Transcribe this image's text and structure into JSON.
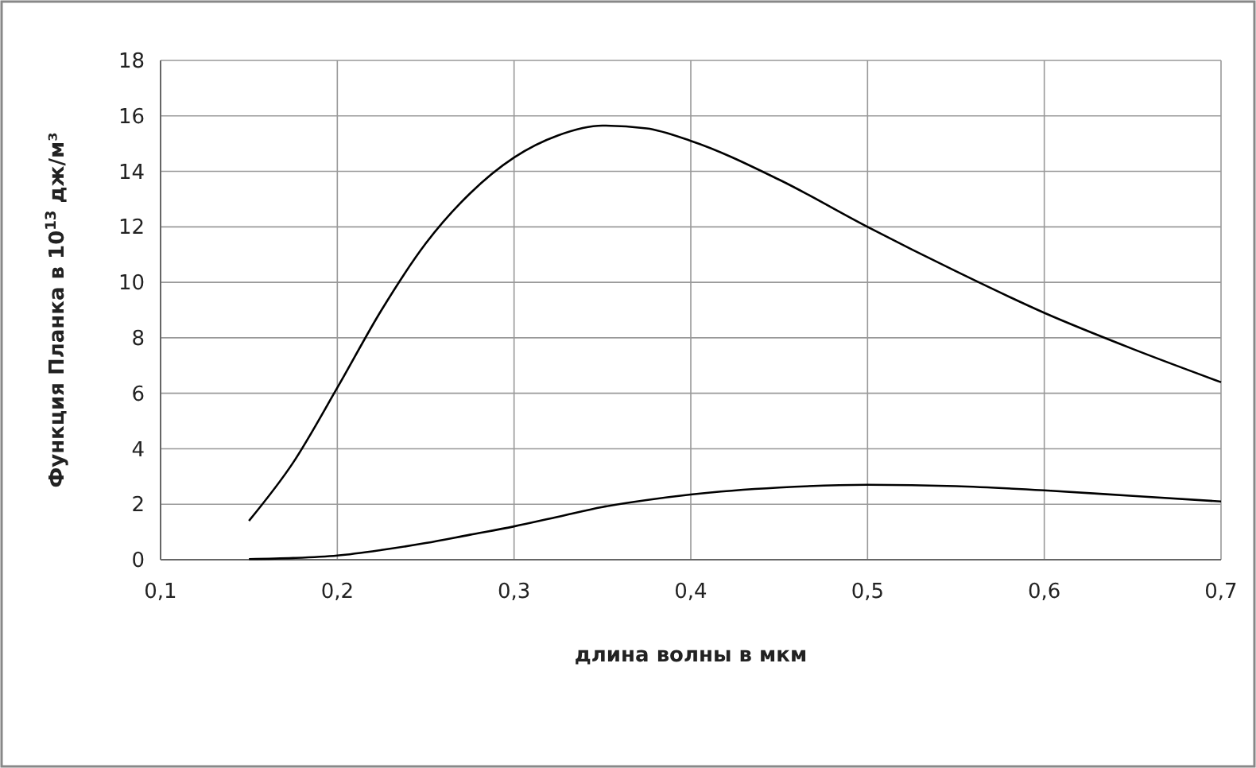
{
  "chart_data": {
    "type": "line",
    "xlabel": "длина волны в мкм",
    "ylabel": "Функция Планка в 10$^{13}$ дж/м³",
    "xlim": [
      0.1,
      0.7
    ],
    "xticks": [
      {
        "value": 0.1,
        "label": "0,1"
      },
      {
        "value": 0.2,
        "label": "0,2"
      },
      {
        "value": 0.3,
        "label": "0,3"
      },
      {
        "value": 0.4,
        "label": "0,4"
      },
      {
        "value": 0.5,
        "label": "0,5"
      },
      {
        "value": 0.6,
        "label": "0,6"
      },
      {
        "value": 0.7,
        "label": "0,7"
      }
    ],
    "ylim": [
      0,
      18
    ],
    "yticks": [
      0,
      2,
      4,
      6,
      8,
      10,
      12,
      14,
      16,
      18
    ],
    "grid": true,
    "marker": "none",
    "line_style": "solid",
    "x": [
      0.15,
      0.175,
      0.2,
      0.225,
      0.25,
      0.275,
      0.3,
      0.325,
      0.35,
      0.375,
      0.4,
      0.45,
      0.5,
      0.55,
      0.6,
      0.65,
      0.7
    ],
    "series": [
      {
        "color": "#000000",
        "values": [
          1.4,
          3.5,
          6.2,
          9.0,
          11.4,
          13.2,
          14.5,
          15.3,
          15.65,
          15.55,
          15.1,
          13.7,
          12.0,
          10.4,
          8.9,
          7.6,
          6.4
        ]
      },
      {
        "color": "#000000",
        "values": [
          0.02,
          0.06,
          0.15,
          0.35,
          0.6,
          0.9,
          1.2,
          1.55,
          1.9,
          2.15,
          2.35,
          2.6,
          2.7,
          2.65,
          2.5,
          2.3,
          2.1
        ]
      }
    ]
  }
}
